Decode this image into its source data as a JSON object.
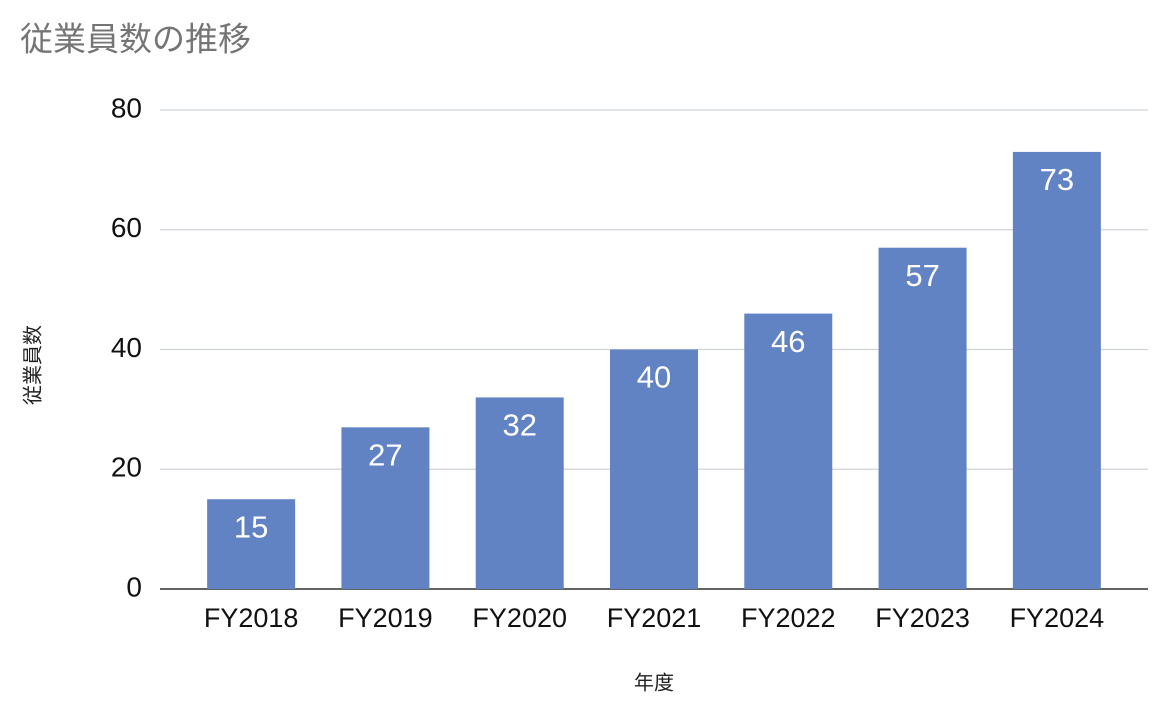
{
  "chart_data": {
    "type": "bar",
    "title": "従業員数の推移",
    "x_label": "年度",
    "y_label": "従業員数",
    "categories": [
      "FY2018",
      "FY2019",
      "FY2020",
      "FY2021",
      "FY2022",
      "FY2023",
      "FY2024"
    ],
    "values": [
      15,
      27,
      32,
      40,
      46,
      57,
      73
    ],
    "color": "#6183c4",
    "ylim": [
      0,
      80
    ],
    "yticks": [
      0,
      20,
      40,
      60,
      80
    ],
    "grid": true
  }
}
